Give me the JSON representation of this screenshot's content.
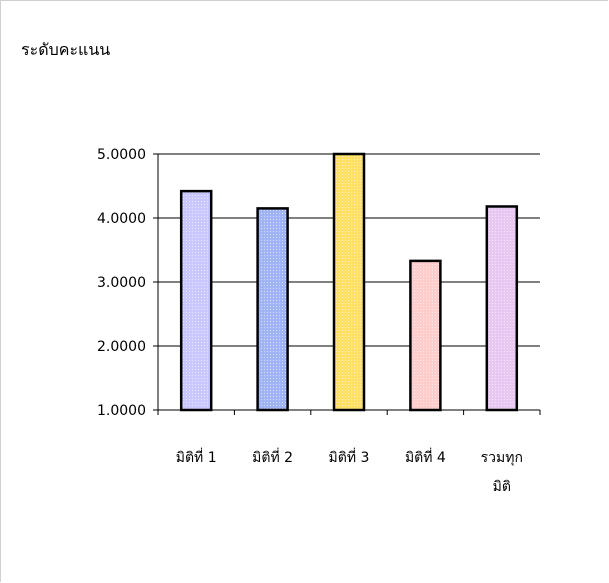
{
  "chart_data": {
    "type": "bar",
    "title": "",
    "xlabel": "",
    "ylabel": "ระดับคะแนน",
    "ylim": [
      1.0,
      5.0
    ],
    "yticks": [
      "1.0000",
      "2.0000",
      "3.0000",
      "4.0000",
      "5.0000"
    ],
    "grid": true,
    "categories": [
      [
        "มิติที่ 1"
      ],
      [
        "มิติที่ 2"
      ],
      [
        "มิติที่ 3"
      ],
      [
        "มิติที่ 4"
      ],
      [
        "รวมทุก",
        "มิติ"
      ]
    ],
    "values": [
      4.42,
      4.15,
      5.0,
      3.33,
      4.18
    ],
    "colors": [
      "#c8c8ff",
      "#9fb3f5",
      "#ffe066",
      "#ffcccc",
      "#e8c8f0"
    ]
  }
}
